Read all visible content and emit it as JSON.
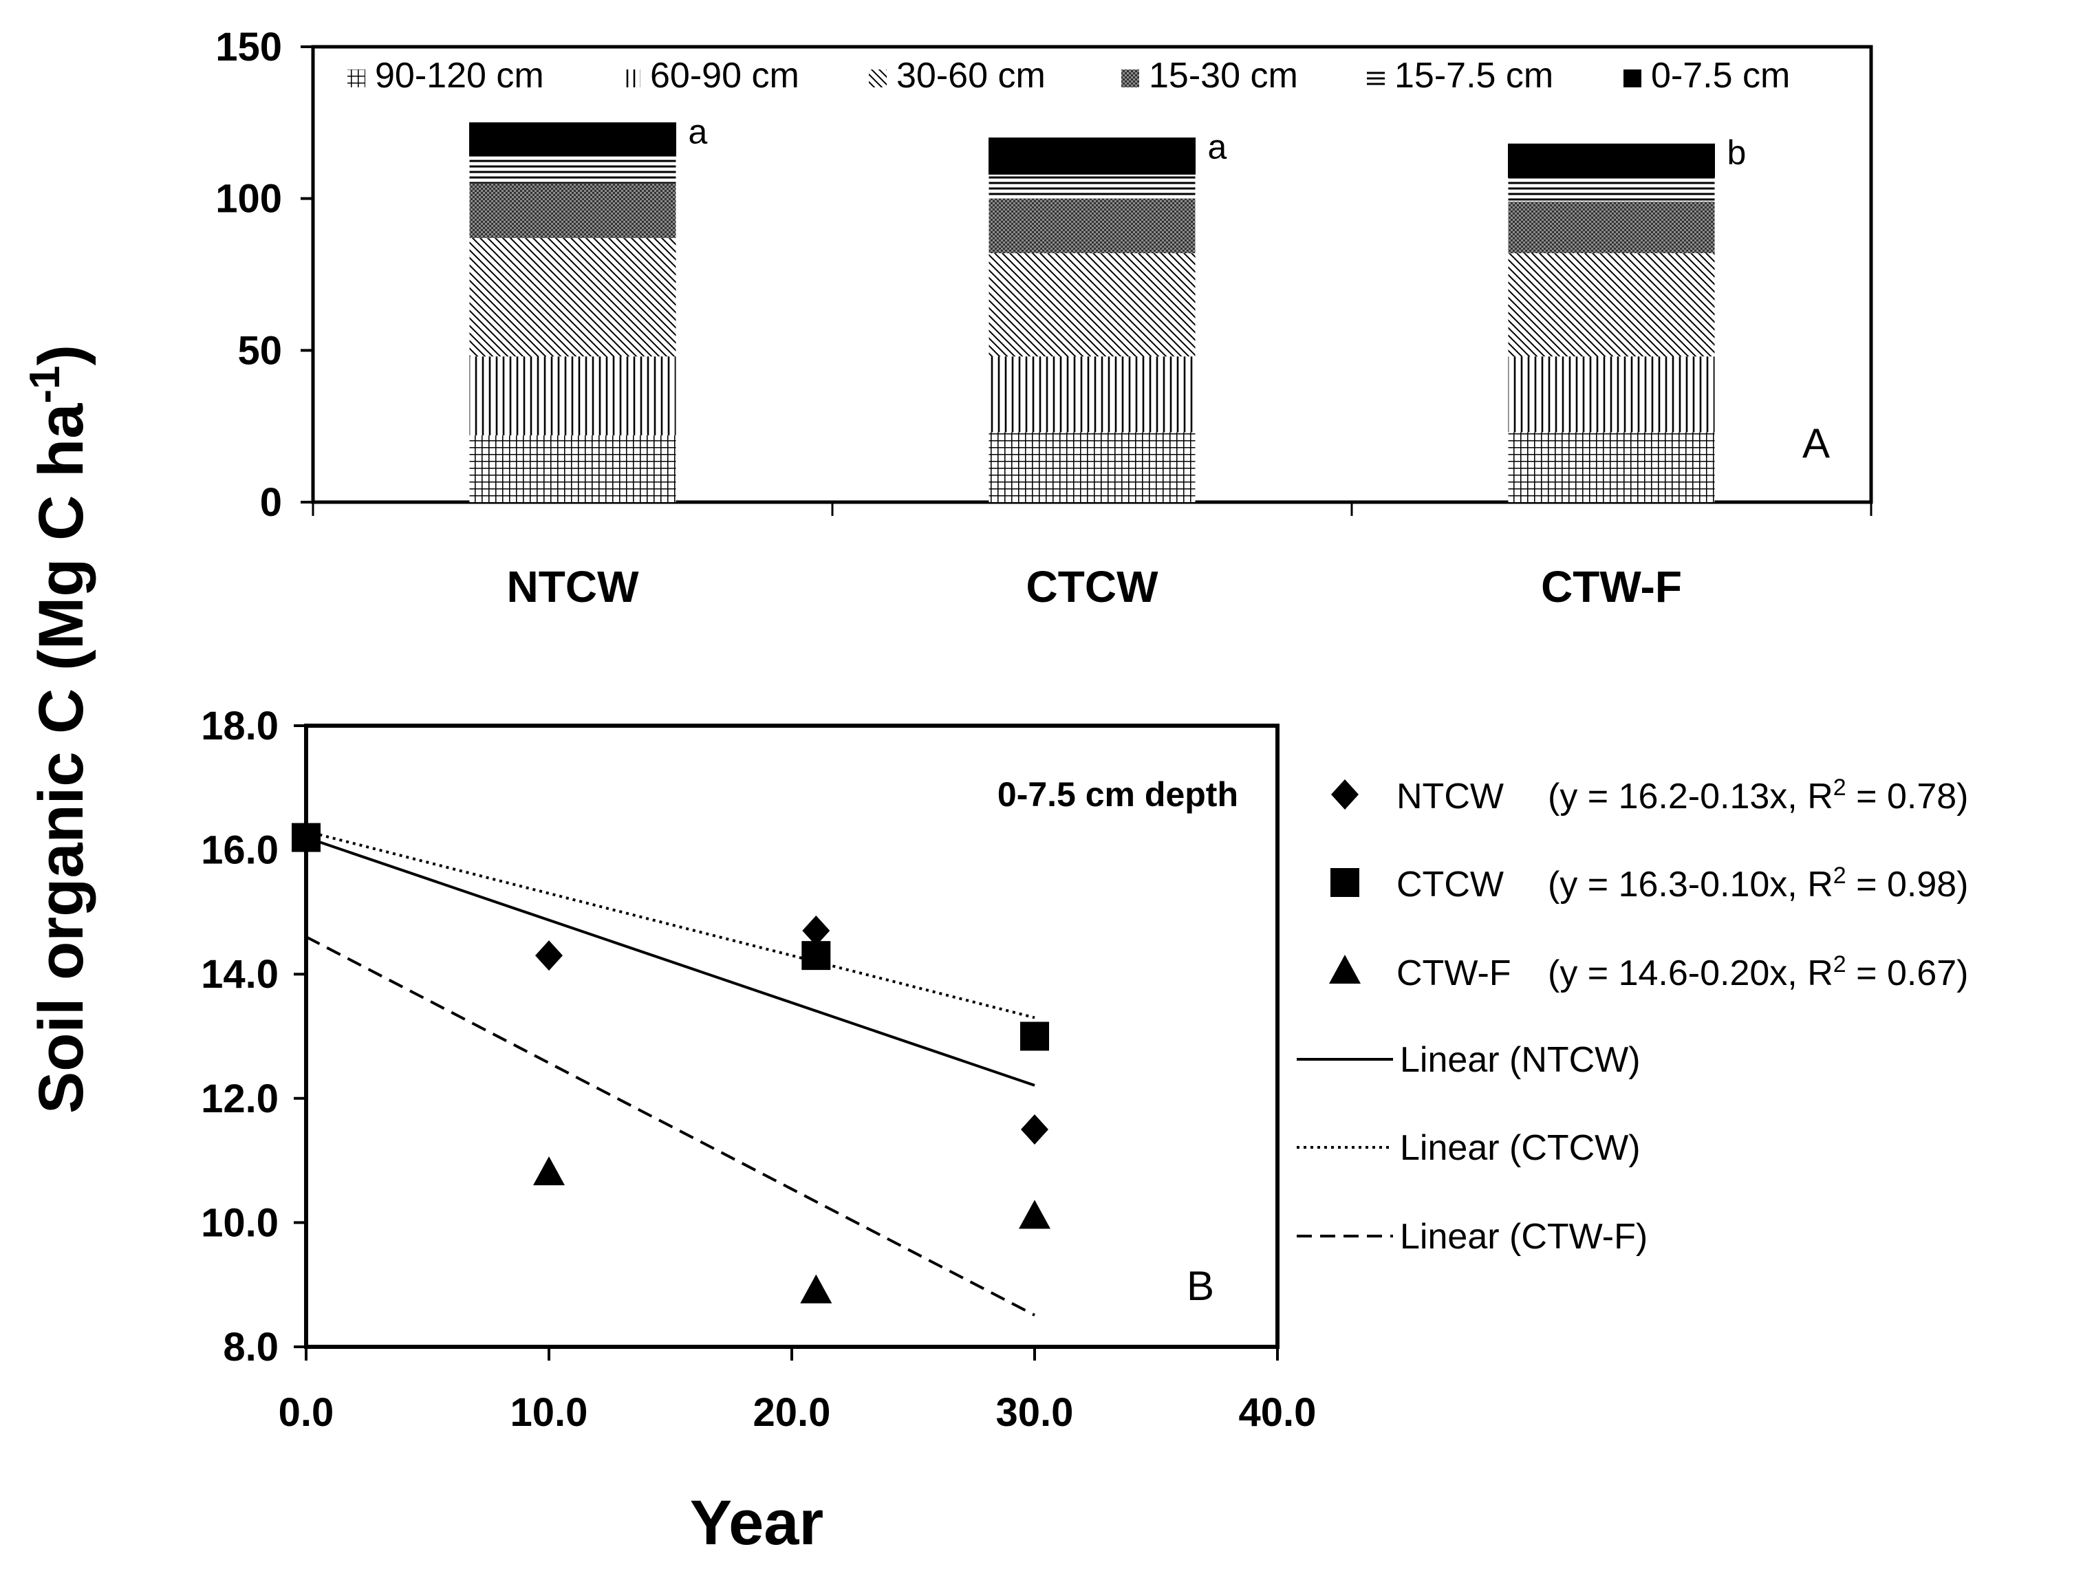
{
  "y_axis_label": "Soil organic C (Mg C ha",
  "y_axis_label_sup": "-1",
  "chart_data": [
    {
      "type": "bar",
      "stacked": true,
      "panel_label": "A",
      "categories": [
        "NTCW",
        "CTCW",
        "CTW-F"
      ],
      "ylim": [
        0,
        150
      ],
      "yticks": [
        "0",
        "50",
        "100",
        "150"
      ],
      "series": [
        {
          "name": "90-120 cm",
          "pattern": "grid",
          "values": [
            22,
            23,
            23
          ]
        },
        {
          "name": "60-90 cm",
          "pattern": "vertical",
          "values": [
            26,
            25,
            25
          ]
        },
        {
          "name": "30-60 cm",
          "pattern": "diagonal",
          "values": [
            39,
            34,
            34
          ]
        },
        {
          "name": "15-30 cm",
          "pattern": "dots",
          "values": [
            18,
            18,
            17
          ]
        },
        {
          "name": "15-7.5 cm",
          "pattern": "horizontal",
          "values": [
            9,
            8,
            8
          ]
        },
        {
          "name": "0-7.5 cm",
          "pattern": "solid",
          "values": [
            11,
            12,
            11
          ]
        }
      ],
      "significance": [
        "a",
        "a",
        "b"
      ],
      "legend_position": "top-inside",
      "grid": false
    },
    {
      "type": "scatter",
      "panel_label": "B",
      "annotation": "0-7.5 cm depth",
      "xlabel": "Year",
      "xlim": [
        0,
        40
      ],
      "ylim": [
        8,
        18
      ],
      "xticks": [
        "0.0",
        "10.0",
        "20.0",
        "30.0",
        "40.0"
      ],
      "yticks": [
        "8.0",
        "10.0",
        "12.0",
        "14.0",
        "16.0",
        "18.0"
      ],
      "series": [
        {
          "name": "NTCW",
          "marker": "diamond",
          "equation": "(y = 16.2-0.13x, R",
          "r2": "= 0.78)",
          "points": [
            [
              0,
              16.2
            ],
            [
              10,
              14.3
            ],
            [
              21,
              14.7
            ],
            [
              30,
              11.5
            ]
          ]
        },
        {
          "name": "CTCW",
          "marker": "square",
          "equation": "(y = 16.3-0.10x, R",
          "r2": "= 0.98)",
          "points": [
            [
              0,
              16.2
            ],
            [
              21,
              14.3
            ],
            [
              30,
              13.0
            ]
          ]
        },
        {
          "name": "CTW-F",
          "marker": "triangle",
          "equation": "(y = 14.6-0.20x, R",
          "r2": "= 0.67)",
          "points": [
            [
              10,
              10.8
            ],
            [
              21,
              8.9
            ],
            [
              30,
              10.1
            ]
          ]
        }
      ],
      "trendlines": [
        {
          "name": "Linear (NTCW)",
          "style": "solid",
          "intercept": 16.2,
          "slope": -0.133,
          "x_range": [
            0,
            30
          ]
        },
        {
          "name": "Linear (CTCW)",
          "style": "dotted",
          "intercept": 16.3,
          "slope": -0.1,
          "x_range": [
            0,
            30
          ]
        },
        {
          "name": "Linear (CTW-F)",
          "style": "dashed",
          "intercept": 14.6,
          "slope": -0.203,
          "x_range": [
            0,
            30
          ]
        }
      ],
      "r2_sup": "2",
      "legend_position": "right",
      "grid": false
    }
  ]
}
